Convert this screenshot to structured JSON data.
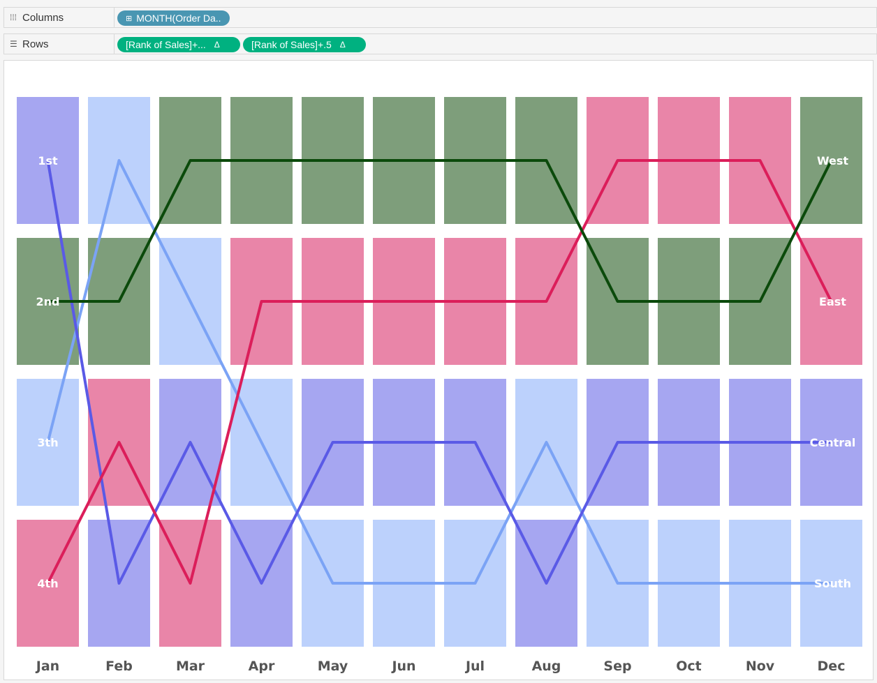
{
  "shelves": {
    "columns": {
      "label": "Columns",
      "pills": [
        "MONTH(Order Da.."
      ]
    },
    "rows": {
      "label": "Rows",
      "pills": [
        "[Rank of Sales]+...",
        "[Rank of Sales]+.5"
      ]
    }
  },
  "colors": {
    "West": "#0b4a0b",
    "East": "#db1e5a",
    "Central": "#5a5ae6",
    "South": "#7ba3f5",
    "West_fill": "#7e9e7b",
    "East_fill": "#e985a8",
    "Central_fill": "#a6a6f1",
    "South_fill": "#bcd1fc"
  },
  "chart_data": {
    "type": "line",
    "title": "",
    "xlabel": "",
    "ylabel": "",
    "categories": [
      "Jan",
      "Feb",
      "Mar",
      "Apr",
      "May",
      "Jun",
      "Jul",
      "Aug",
      "Sep",
      "Oct",
      "Nov",
      "Dec"
    ],
    "rank_labels": [
      "1st",
      "2nd",
      "3th",
      "4th"
    ],
    "ylim": [
      1,
      4
    ],
    "y_reversed": true,
    "series": [
      {
        "name": "West",
        "values": [
          2,
          2,
          1,
          1,
          1,
          1,
          1,
          1,
          2,
          2,
          2,
          1
        ]
      },
      {
        "name": "East",
        "values": [
          4,
          3,
          4,
          2,
          2,
          2,
          2,
          2,
          1,
          1,
          1,
          2
        ]
      },
      {
        "name": "Central",
        "values": [
          1,
          4,
          3,
          4,
          3,
          3,
          3,
          4,
          3,
          3,
          3,
          3
        ]
      },
      {
        "name": "South",
        "values": [
          3,
          1,
          2,
          3,
          4,
          4,
          4,
          3,
          4,
          4,
          4,
          4
        ]
      }
    ]
  }
}
